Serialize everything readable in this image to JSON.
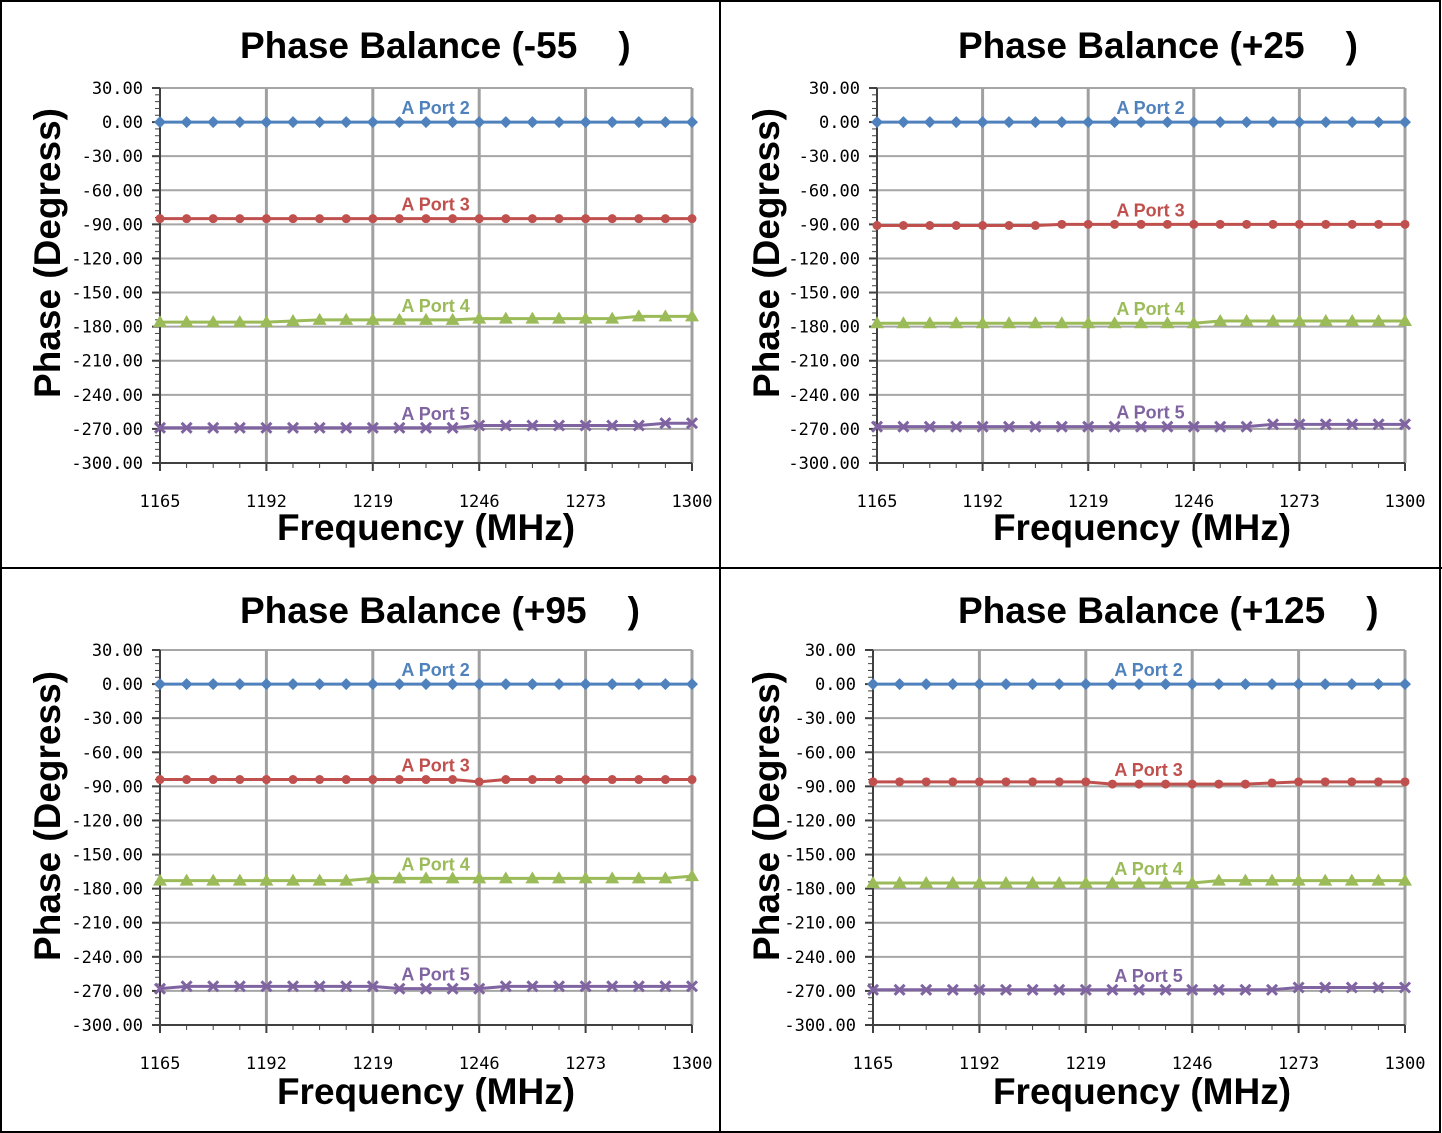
{
  "chart_data": [
    {
      "type": "line",
      "title": "Phase Balance (-55    )",
      "xlabel": "Frequency (MHz)",
      "ylabel": "Phase (Degress)",
      "xlim": [
        1165,
        1300
      ],
      "ylim": [
        -300,
        30
      ],
      "grid": true,
      "x_ticks": [
        1165,
        1192,
        1219,
        1246,
        1273,
        1300
      ],
      "y_ticks": [
        30,
        0,
        -30,
        -60,
        -90,
        -120,
        -150,
        -180,
        -210,
        -240,
        -270,
        -300
      ],
      "y_tick_labels": [
        "30.00",
        "0.00",
        "-30.00",
        "-60.00",
        "-90.00",
        "-120.00",
        "-150.00",
        "-180.00",
        "-210.00",
        "-240.00",
        "-270.00",
        "-300.00"
      ],
      "x": [
        1165,
        1171.75,
        1178.5,
        1185.25,
        1192,
        1198.75,
        1205.5,
        1212.25,
        1219,
        1225.75,
        1232.5,
        1239.25,
        1246,
        1252.75,
        1259.5,
        1266.25,
        1273,
        1279.75,
        1286.5,
        1293.25,
        1300
      ],
      "series": [
        {
          "name": "A Port 2",
          "color": "#4f81bd",
          "marker": "diamond",
          "values": [
            0,
            0,
            0,
            0,
            0,
            0,
            0,
            0,
            0,
            0,
            0,
            0,
            0,
            0,
            0,
            0,
            0,
            0,
            0,
            0,
            0
          ]
        },
        {
          "name": "A Port 3",
          "color": "#c0504d",
          "marker": "circle",
          "values": [
            -85,
            -85,
            -85,
            -85,
            -85,
            -85,
            -85,
            -85,
            -85,
            -85,
            -85,
            -85,
            -85,
            -85,
            -85,
            -85,
            -85,
            -85,
            -85,
            -85,
            -85
          ]
        },
        {
          "name": "A Port 4",
          "color": "#9bbb59",
          "marker": "triangle",
          "values": [
            -176,
            -176,
            -176,
            -176,
            -176,
            -175,
            -174,
            -174,
            -174,
            -174,
            -174,
            -174,
            -173,
            -173,
            -173,
            -173,
            -173,
            -173,
            -171,
            -171,
            -171
          ]
        },
        {
          "name": "A Port 5",
          "color": "#8064a2",
          "marker": "x",
          "values": [
            -269,
            -269,
            -269,
            -269,
            -269,
            -269,
            -269,
            -269,
            -269,
            -269,
            -269,
            -269,
            -267,
            -267,
            -267,
            -267,
            -267,
            -267,
            -267,
            -265,
            -265
          ]
        }
      ]
    },
    {
      "type": "line",
      "title": "Phase Balance (+25    )",
      "xlabel": "Frequency (MHz)",
      "ylabel": "Phase (Degress)",
      "xlim": [
        1165,
        1300
      ],
      "ylim": [
        -300,
        30
      ],
      "grid": true,
      "x_ticks": [
        1165,
        1192,
        1219,
        1246,
        1273,
        1300
      ],
      "y_ticks": [
        30,
        0,
        -30,
        -60,
        -90,
        -120,
        -150,
        -180,
        -210,
        -240,
        -270,
        -300
      ],
      "y_tick_labels": [
        "30.00",
        "0.00",
        "-30.00",
        "-60.00",
        "-90.00",
        "-120.00",
        "-150.00",
        "-180.00",
        "-210.00",
        "-240.00",
        "-270.00",
        "-300.00"
      ],
      "x": [
        1165,
        1171.75,
        1178.5,
        1185.25,
        1192,
        1198.75,
        1205.5,
        1212.25,
        1219,
        1225.75,
        1232.5,
        1239.25,
        1246,
        1252.75,
        1259.5,
        1266.25,
        1273,
        1279.75,
        1286.5,
        1293.25,
        1300
      ],
      "series": [
        {
          "name": "A Port 2",
          "color": "#4f81bd",
          "marker": "diamond",
          "values": [
            0,
            0,
            0,
            0,
            0,
            0,
            0,
            0,
            0,
            0,
            0,
            0,
            0,
            0,
            0,
            0,
            0,
            0,
            0,
            0,
            0
          ]
        },
        {
          "name": "A Port 3",
          "color": "#c0504d",
          "marker": "circle",
          "values": [
            -91,
            -91,
            -91,
            -91,
            -91,
            -91,
            -91,
            -90,
            -90,
            -90,
            -90,
            -90,
            -90,
            -90,
            -90,
            -90,
            -90,
            -90,
            -90,
            -90,
            -90
          ]
        },
        {
          "name": "A Port 4",
          "color": "#9bbb59",
          "marker": "triangle",
          "values": [
            -177,
            -177,
            -177,
            -177,
            -177,
            -177,
            -177,
            -177,
            -177,
            -177,
            -177,
            -177,
            -177,
            -175,
            -175,
            -175,
            -175,
            -175,
            -175,
            -175,
            -175
          ]
        },
        {
          "name": "A Port 5",
          "color": "#8064a2",
          "marker": "x",
          "values": [
            -268,
            -268,
            -268,
            -268,
            -268,
            -268,
            -268,
            -268,
            -268,
            -268,
            -268,
            -268,
            -268,
            -268,
            -268,
            -266,
            -266,
            -266,
            -266,
            -266,
            -266
          ]
        }
      ]
    },
    {
      "type": "line",
      "title": "Phase Balance (+95    )",
      "xlabel": "Frequency (MHz)",
      "ylabel": "Phase (Degress)",
      "xlim": [
        1165,
        1300
      ],
      "ylim": [
        -300,
        30
      ],
      "grid": true,
      "x_ticks": [
        1165,
        1192,
        1219,
        1246,
        1273,
        1300
      ],
      "y_ticks": [
        30,
        0,
        -30,
        -60,
        -90,
        -120,
        -150,
        -180,
        -210,
        -240,
        -270,
        -300
      ],
      "y_tick_labels": [
        "30.00",
        "0.00",
        "-30.00",
        "-60.00",
        "-90.00",
        "-120.00",
        "-150.00",
        "-180.00",
        "-210.00",
        "-240.00",
        "-270.00",
        "-300.00"
      ],
      "x": [
        1165,
        1171.75,
        1178.5,
        1185.25,
        1192,
        1198.75,
        1205.5,
        1212.25,
        1219,
        1225.75,
        1232.5,
        1239.25,
        1246,
        1252.75,
        1259.5,
        1266.25,
        1273,
        1279.75,
        1286.5,
        1293.25,
        1300
      ],
      "series": [
        {
          "name": "A Port 2",
          "color": "#4f81bd",
          "marker": "diamond",
          "values": [
            0,
            0,
            0,
            0,
            0,
            0,
            0,
            0,
            0,
            0,
            0,
            0,
            0,
            0,
            0,
            0,
            0,
            0,
            0,
            0,
            0
          ]
        },
        {
          "name": "A Port 3",
          "color": "#c0504d",
          "marker": "circle",
          "values": [
            -84,
            -84,
            -84,
            -84,
            -84,
            -84,
            -84,
            -84,
            -84,
            -84,
            -84,
            -84,
            -86,
            -84,
            -84,
            -84,
            -84,
            -84,
            -84,
            -84,
            -84
          ]
        },
        {
          "name": "A Port 4",
          "color": "#9bbb59",
          "marker": "triangle",
          "values": [
            -173,
            -173,
            -173,
            -173,
            -173,
            -173,
            -173,
            -173,
            -171,
            -171,
            -171,
            -171,
            -171,
            -171,
            -171,
            -171,
            -171,
            -171,
            -171,
            -171,
            -169
          ]
        },
        {
          "name": "A Port 5",
          "color": "#8064a2",
          "marker": "x",
          "values": [
            -268,
            -266,
            -266,
            -266,
            -266,
            -266,
            -266,
            -266,
            -266,
            -268,
            -268,
            -268,
            -268,
            -266,
            -266,
            -266,
            -266,
            -266,
            -266,
            -266,
            -266
          ]
        }
      ]
    },
    {
      "type": "line",
      "title": "Phase Balance (+125    )",
      "xlabel": "Frequency (MHz)",
      "ylabel": "Phase (Degress)",
      "xlim": [
        1165,
        1300
      ],
      "ylim": [
        -300,
        30
      ],
      "grid": true,
      "x_ticks": [
        1165,
        1192,
        1219,
        1246,
        1273,
        1300
      ],
      "y_ticks": [
        30,
        0,
        -30,
        -60,
        -90,
        -120,
        -150,
        -180,
        -210,
        -240,
        -270,
        -300
      ],
      "y_tick_labels": [
        "30.00",
        "0.00",
        "-30.00",
        "-60.00",
        "-90.00",
        "-120.00",
        "-150.00",
        "-180.00",
        "-210.00",
        "-240.00",
        "-270.00",
        "-300.00"
      ],
      "x": [
        1165,
        1171.75,
        1178.5,
        1185.25,
        1192,
        1198.75,
        1205.5,
        1212.25,
        1219,
        1225.75,
        1232.5,
        1239.25,
        1246,
        1252.75,
        1259.5,
        1266.25,
        1273,
        1279.75,
        1286.5,
        1293.25,
        1300
      ],
      "series": [
        {
          "name": "A Port 2",
          "color": "#4f81bd",
          "marker": "diamond",
          "values": [
            0,
            0,
            0,
            0,
            0,
            0,
            0,
            0,
            0,
            0,
            0,
            0,
            0,
            0,
            0,
            0,
            0,
            0,
            0,
            0,
            0
          ]
        },
        {
          "name": "A Port 3",
          "color": "#c0504d",
          "marker": "circle",
          "values": [
            -86,
            -86,
            -86,
            -86,
            -86,
            -86,
            -86,
            -86,
            -86,
            -88,
            -88,
            -88,
            -88,
            -88,
            -88,
            -87,
            -86,
            -86,
            -86,
            -86,
            -86
          ]
        },
        {
          "name": "A Port 4",
          "color": "#9bbb59",
          "marker": "triangle",
          "values": [
            -175,
            -175,
            -175,
            -175,
            -175,
            -175,
            -175,
            -175,
            -175,
            -175,
            -175,
            -175,
            -175,
            -173,
            -173,
            -173,
            -173,
            -173,
            -173,
            -173,
            -173
          ]
        },
        {
          "name": "A Port 5",
          "color": "#8064a2",
          "marker": "x",
          "values": [
            -269,
            -269,
            -269,
            -269,
            -269,
            -269,
            -269,
            -269,
            -269,
            -269,
            -269,
            -269,
            -269,
            -269,
            -269,
            -269,
            -267,
            -267,
            -267,
            -267,
            -267
          ]
        }
      ]
    }
  ]
}
